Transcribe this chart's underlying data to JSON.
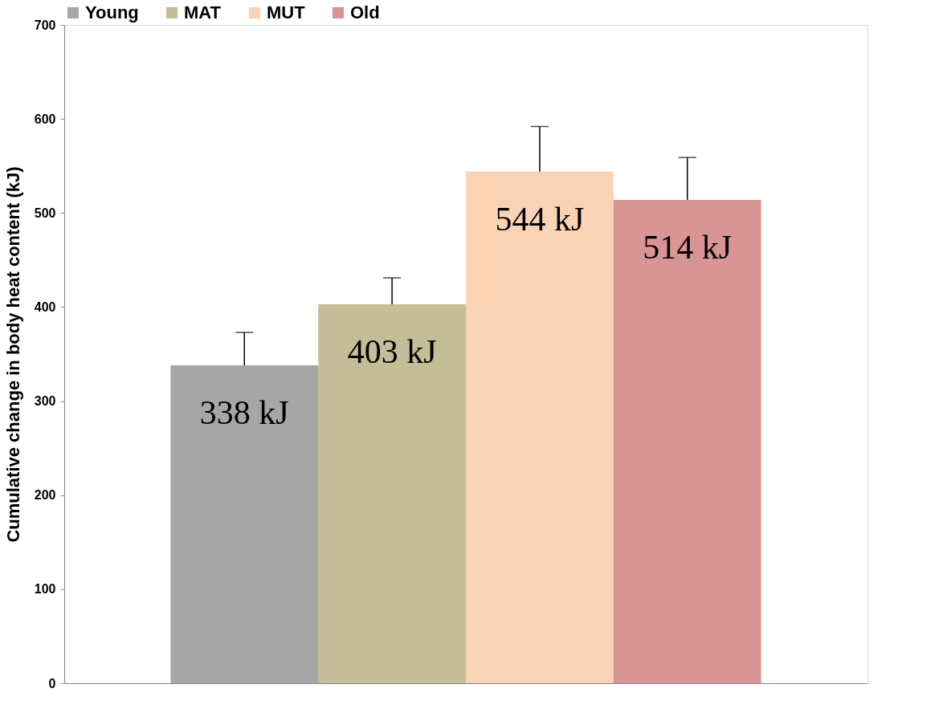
{
  "chart_data": {
    "type": "bar",
    "ylabel": "Cumulative change in body heat content (kJ)",
    "categories": [
      null
    ],
    "series": [
      {
        "name": "Young",
        "color": "#a6a6a6",
        "values": [
          338
        ],
        "errors": [
          [
            338,
            373
          ]
        ],
        "value_labels": [
          "338 kJ"
        ]
      },
      {
        "name": "MAT",
        "color": "#c4bd97",
        "values": [
          403
        ],
        "errors": [
          [
            403,
            431
          ]
        ],
        "value_labels": [
          "403 kJ"
        ]
      },
      {
        "name": "MUT",
        "color": "#fad3b4",
        "values": [
          544
        ],
        "errors": [
          [
            544,
            592
          ]
        ],
        "value_labels": [
          "544 kJ"
        ]
      },
      {
        "name": "Old",
        "color": "#d99594",
        "values": [
          514
        ],
        "errors": [
          [
            514,
            559
          ]
        ],
        "value_labels": [
          "514 kJ"
        ]
      }
    ],
    "ylim": [
      0,
      700
    ],
    "yticks": [
      0,
      100,
      200,
      300,
      400,
      500,
      600,
      700
    ],
    "grid": false,
    "legend": "top"
  }
}
